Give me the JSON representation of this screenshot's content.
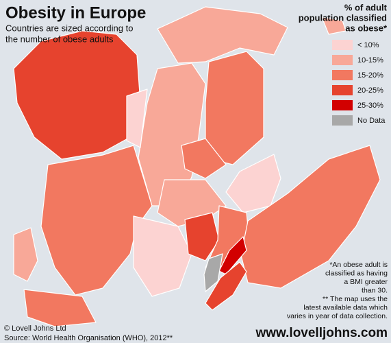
{
  "header": {
    "title": "Obesity in Europe",
    "subtitle": [
      "Countries are sized according to",
      "the number of obese adults"
    ]
  },
  "legend": {
    "title": [
      "% of adult",
      "population classified",
      "as obese*"
    ],
    "items": [
      {
        "label": "< 10%",
        "color": "#fcd3d2"
      },
      {
        "label": "10-15%",
        "color": "#f8a898"
      },
      {
        "label": "15-20%",
        "color": "#f27860"
      },
      {
        "label": "20-25%",
        "color": "#e6432e"
      },
      {
        "label": "25-30%",
        "color": "#d20000"
      },
      {
        "label": "No Data",
        "color": "#a8a8a8"
      }
    ]
  },
  "notes": [
    "*An obese adult is",
    "classified as having",
    "a BMI greater",
    "than 30.",
    "** The map uses the",
    "latest available data which",
    "varies in year of data collection."
  ],
  "footer": {
    "copyright": "© Lovell Johns Ltd",
    "source": "Source: World Health Organisation (WHO), 2012**",
    "website": "www.lovelljohns.com"
  }
}
